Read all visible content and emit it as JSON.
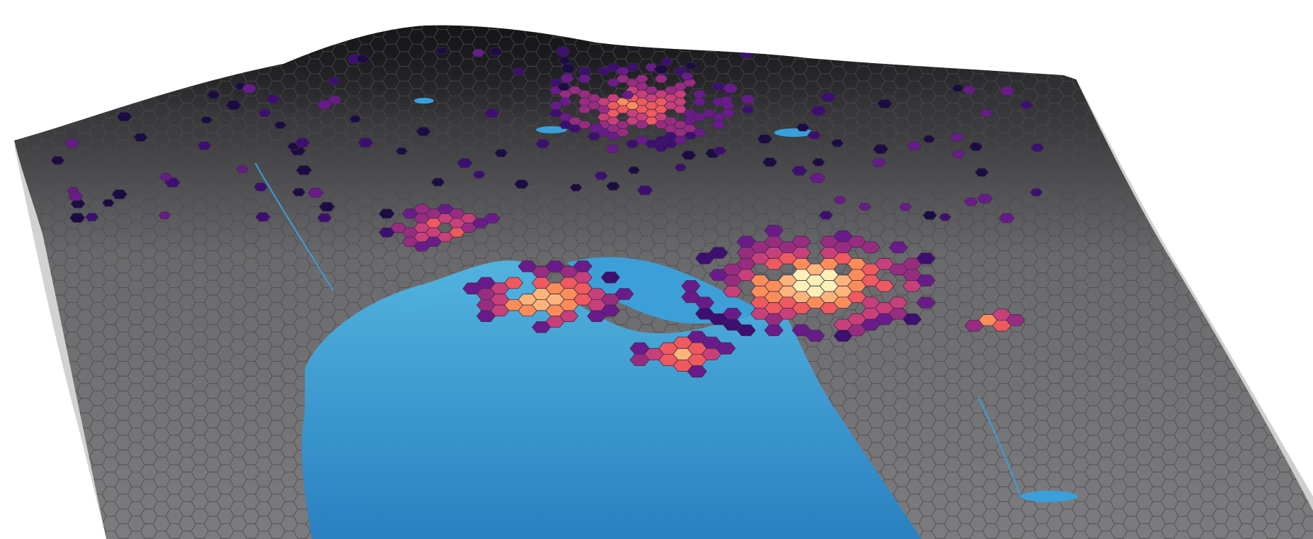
{
  "scene": {
    "type": "3d-terrain-hexbin-map",
    "text_labels": [],
    "colors": {
      "background": "#ffffff",
      "terrain_dark": "#2a2a2c",
      "terrain_mid": "#5e5e60",
      "terrain_light": "#8c8c8e",
      "hex_empty": "#6e6e70",
      "hex_outline": "#4a4a4c",
      "water_deep": "#2b86c4",
      "water_light": "#4fb0dd",
      "water_lake": "#3aa0dc",
      "side_shadow": "#c9c9c9"
    },
    "density_scale": [
      "#1b0c41",
      "#3c0f70",
      "#6a1b8a",
      "#982d80",
      "#c8407a",
      "#ee5a5f",
      "#fc8d59",
      "#fdb47a",
      "#fdf0b6"
    ],
    "hotspots": [
      {
        "name": "city-center-west",
        "level": 8
      },
      {
        "name": "city-center-east",
        "level": 8
      },
      {
        "name": "peninsula-cluster",
        "level": 7
      },
      {
        "name": "northwest-cluster",
        "level": 5
      },
      {
        "name": "north-valley-strip",
        "level": 5
      },
      {
        "name": "far-east-cluster",
        "level": 8
      }
    ]
  }
}
